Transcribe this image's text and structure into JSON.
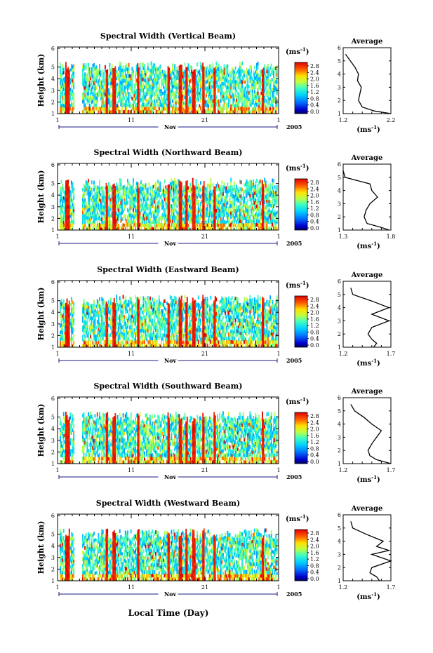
{
  "figure": {
    "xaxis_title": "Local Time (Day)",
    "month_label": "Nov",
    "year_label": "2005",
    "ylabel": "Height (km)",
    "colorbar_unit": "(ms",
    "colorbar_unit_exp": "-1",
    "colorbar_unit_close": ")",
    "avg_unit": "(ms",
    "avg_unit_exp": "-1",
    "avg_unit_close": ")"
  },
  "chart_data": [
    {
      "type": "heatmap",
      "title": "Spectral Width (Vertical Beam)",
      "xlabel": "Local Time (Day)",
      "ylabel": "Height (km)",
      "xlim": [
        1,
        31
      ],
      "ylim": [
        1,
        6
      ],
      "x_ticks": [
        "1",
        "11",
        "21",
        "1"
      ],
      "y_ticks": [
        "1",
        "2",
        "3",
        "4",
        "5",
        "6"
      ],
      "colorbar": {
        "range": [
          0.0,
          3.0
        ],
        "ticks": [
          "0.0",
          "0.4",
          "0.8",
          "1.2",
          "1.6",
          "2.0",
          "2.4",
          "2.8"
        ]
      },
      "data_gaps_days": [
        [
          3.2,
          4.3
        ]
      ],
      "average_profile": {
        "title": "Average",
        "xlabel": "(ms-1)",
        "xlim": [
          1.2,
          2.2
        ],
        "x_ticks": [
          "1.2",
          "2.2"
        ],
        "height_km": [
          1.0,
          1.2,
          1.5,
          2.0,
          2.5,
          3.0,
          3.5,
          4.0,
          4.5,
          5.0,
          5.5
        ],
        "width_ms": [
          2.2,
          1.85,
          1.6,
          1.52,
          1.55,
          1.58,
          1.5,
          1.52,
          1.45,
          1.35,
          1.25
        ]
      }
    },
    {
      "type": "heatmap",
      "title": "Spectral Width (Northward Beam)",
      "xlabel": "Local Time (Day)",
      "ylabel": "Height (km)",
      "xlim": [
        1,
        31
      ],
      "ylim": [
        1,
        6
      ],
      "x_ticks": [
        "1",
        "11",
        "21",
        "1"
      ],
      "y_ticks": [
        "1",
        "2",
        "3",
        "4",
        "5",
        "6"
      ],
      "colorbar": {
        "range": [
          0.0,
          2.8
        ],
        "ticks": [
          "0.0",
          "0.4",
          "0.8",
          "1.2",
          "1.6",
          "2.0",
          "2.4",
          "2.8"
        ]
      },
      "data_gaps_days": [
        [
          3.2,
          4.3
        ]
      ],
      "average_profile": {
        "title": "Average",
        "xlabel": "(ms-1)",
        "xlim": [
          1.3,
          1.8
        ],
        "x_ticks": [
          "1.3",
          "1.8"
        ],
        "height_km": [
          1.0,
          1.2,
          1.5,
          2.0,
          2.5,
          3.0,
          3.5,
          4.0,
          4.5,
          5.0,
          5.5
        ],
        "width_ms": [
          1.78,
          1.7,
          1.55,
          1.52,
          1.54,
          1.58,
          1.66,
          1.6,
          1.58,
          1.32,
          1.3
        ]
      }
    },
    {
      "type": "heatmap",
      "title": "Spectral Width (Eastward Beam)",
      "xlabel": "Local Time (Day)",
      "ylabel": "Height (km)",
      "xlim": [
        1,
        31
      ],
      "ylim": [
        1,
        6
      ],
      "x_ticks": [
        "1",
        "11",
        "21",
        "1"
      ],
      "y_ticks": [
        "1",
        "2",
        "3",
        "4",
        "5",
        "6"
      ],
      "colorbar": {
        "range": [
          0.0,
          2.8
        ],
        "ticks": [
          "0.0",
          "0.4",
          "0.8",
          "1.2",
          "1.6",
          "2.0",
          "2.4",
          "2.8"
        ]
      },
      "data_gaps_days": [
        [
          3.2,
          4.3
        ]
      ],
      "average_profile": {
        "title": "Average",
        "xlabel": "(ms-1)",
        "xlim": [
          1.2,
          1.7
        ],
        "x_ticks": [
          "1.2",
          "1.7"
        ],
        "height_km": [
          1.0,
          1.3,
          1.6,
          2.0,
          2.5,
          3.0,
          3.5,
          4.0,
          4.5,
          5.0,
          5.5
        ],
        "width_ms": [
          1.52,
          1.55,
          1.5,
          1.46,
          1.5,
          1.68,
          1.5,
          1.68,
          1.5,
          1.3,
          1.28
        ]
      }
    },
    {
      "type": "heatmap",
      "title": "Spectral Width (Southward Beam)",
      "xlabel": "Local Time (Day)",
      "ylabel": "Height (km)",
      "xlim": [
        1,
        31
      ],
      "ylim": [
        1,
        6
      ],
      "x_ticks": [
        "1",
        "11",
        "21",
        "1"
      ],
      "y_ticks": [
        "1",
        "2",
        "3",
        "4",
        "5",
        "6"
      ],
      "colorbar": {
        "range": [
          0.0,
          2.8
        ],
        "ticks": [
          "0.0",
          "0.4",
          "0.8",
          "1.2",
          "1.6",
          "2.0",
          "2.4",
          "2.8"
        ]
      },
      "data_gaps_days": [
        [
          3.2,
          4.3
        ]
      ],
      "average_profile": {
        "title": "Average",
        "xlabel": "(ms-1)",
        "xlim": [
          1.2,
          1.7
        ],
        "x_ticks": [
          "1.2",
          "1.7"
        ],
        "height_km": [
          1.0,
          1.3,
          1.6,
          2.0,
          2.5,
          3.0,
          3.5,
          4.0,
          4.5,
          5.0,
          5.5
        ],
        "width_ms": [
          1.7,
          1.55,
          1.48,
          1.46,
          1.5,
          1.55,
          1.6,
          1.5,
          1.42,
          1.32,
          1.28
        ]
      }
    },
    {
      "type": "heatmap",
      "title": "Spectral Width (Westward Beam)",
      "xlabel": "Local Time (Day)",
      "ylabel": "Height (km)",
      "xlim": [
        1,
        31
      ],
      "ylim": [
        1,
        6
      ],
      "x_ticks": [
        "1",
        "11",
        "21",
        "1"
      ],
      "y_ticks": [
        "1",
        "2",
        "3",
        "4",
        "5",
        "6"
      ],
      "colorbar": {
        "range": [
          0.0,
          2.8
        ],
        "ticks": [
          "0.0",
          "0.4",
          "0.8",
          "1.2",
          "1.6",
          "2.0",
          "2.4",
          "2.8"
        ]
      },
      "data_gaps_days": [
        [
          3.2,
          4.3
        ]
      ],
      "average_profile": {
        "title": "Average",
        "xlabel": "(ms-1)",
        "xlim": [
          1.2,
          1.7
        ],
        "x_ticks": [
          "1.2",
          "1.7"
        ],
        "height_km": [
          1.0,
          1.3,
          1.6,
          2.0,
          2.5,
          3.0,
          3.3,
          3.6,
          4.0,
          4.5,
          5.0,
          5.5
        ],
        "width_ms": [
          1.58,
          1.55,
          1.48,
          1.5,
          1.7,
          1.5,
          1.68,
          1.55,
          1.62,
          1.45,
          1.3,
          1.28
        ]
      }
    }
  ]
}
